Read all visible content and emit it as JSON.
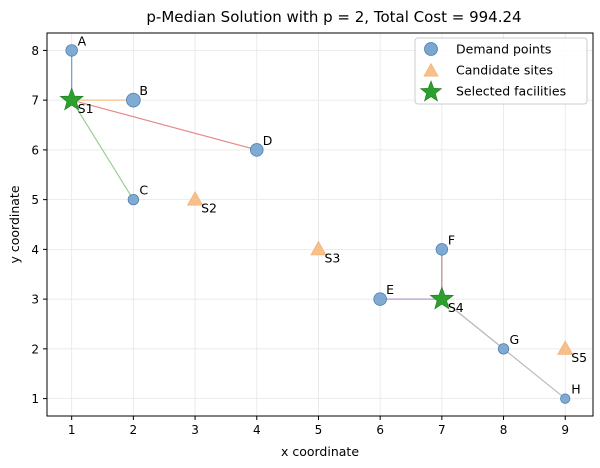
{
  "chart_data": {
    "type": "scatter",
    "title": "p-Median Solution with p = 2, Total Cost = 994.24",
    "xlabel": "x coordinate",
    "ylabel": "y coordinate",
    "xlim": [
      0.6,
      9.45
    ],
    "ylim": [
      0.65,
      8.35
    ],
    "xticks": [
      1,
      2,
      3,
      4,
      5,
      6,
      7,
      8,
      9
    ],
    "yticks": [
      1,
      2,
      3,
      4,
      5,
      6,
      7,
      8
    ],
    "grid": true,
    "legend_position": "top-right",
    "legend": [
      {
        "label": "Demand points",
        "marker": "circle",
        "color": "#6a9ec9"
      },
      {
        "label": "Candidate sites",
        "marker": "triangle",
        "color": "#f7bf8b"
      },
      {
        "label": "Selected facilities",
        "marker": "star",
        "color": "#2ca02c"
      }
    ],
    "demand_points": [
      {
        "label": "A",
        "x": 1,
        "y": 8,
        "weight": 2
      },
      {
        "label": "B",
        "x": 2,
        "y": 7,
        "weight": 3
      },
      {
        "label": "C",
        "x": 2,
        "y": 5,
        "weight": 1.5
      },
      {
        "label": "D",
        "x": 4,
        "y": 6,
        "weight": 2.5
      },
      {
        "label": "E",
        "x": 6,
        "y": 3,
        "weight": 2.5
      },
      {
        "label": "F",
        "x": 7,
        "y": 4,
        "weight": 2
      },
      {
        "label": "G",
        "x": 8,
        "y": 2,
        "weight": 1.5
      },
      {
        "label": "H",
        "x": 9,
        "y": 1,
        "weight": 1
      }
    ],
    "candidate_sites": [
      {
        "label": "S1",
        "x": 1,
        "y": 7
      },
      {
        "label": "S2",
        "x": 3,
        "y": 5
      },
      {
        "label": "S3",
        "x": 5,
        "y": 4
      },
      {
        "label": "S4",
        "x": 7,
        "y": 3
      },
      {
        "label": "S5",
        "x": 9,
        "y": 2
      }
    ],
    "selected_facilities": [
      "S1",
      "S4"
    ],
    "assignments": [
      {
        "from": "A",
        "to": "S1",
        "color": "#6a9ec9"
      },
      {
        "from": "B",
        "to": "S1",
        "color": "#f7bf8b"
      },
      {
        "from": "C",
        "to": "S1",
        "color": "#98d08f"
      },
      {
        "from": "D",
        "to": "S1",
        "color": "#e58b8b"
      },
      {
        "from": "E",
        "to": "S4",
        "color": "#b69ac9"
      },
      {
        "from": "F",
        "to": "S4",
        "color": "#b58a84"
      },
      {
        "from": "G",
        "to": "S4",
        "color": "#e9a3d0"
      },
      {
        "from": "H",
        "to": "S4",
        "color": "#bdbdbd"
      }
    ]
  }
}
